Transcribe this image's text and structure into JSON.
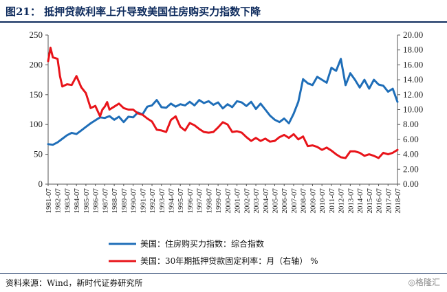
{
  "title": "图21：  抵押贷款利率上升导致美国住房购买力指数下降",
  "source": "资料来源：Wind，新时代证券研究所",
  "watermark": "◎格隆汇",
  "chart_data": {
    "type": "line",
    "title": "图21：  抵押贷款利率上升导致美国住房购买力指数下降",
    "left_axis": {
      "min": 0,
      "max": 250,
      "ticks": [
        0,
        50,
        100,
        150,
        200,
        250
      ],
      "labels": [
        "0",
        "50",
        "100",
        "150",
        "200",
        "250"
      ]
    },
    "right_axis": {
      "min": 0,
      "max": 20,
      "ticks": [
        0,
        2,
        4,
        6,
        8,
        10,
        12,
        14,
        16,
        18,
        20
      ],
      "labels": [
        "0.00",
        "2.00",
        "4.00",
        "6.00",
        "8.00",
        "10.00",
        "12.00",
        "14.00",
        "16.00",
        "18.00",
        "20.00"
      ]
    },
    "x_tick_labels": [
      "1981-07",
      "1982-07",
      "1983-07",
      "1984-07",
      "1985-07",
      "1986-07",
      "1987-07",
      "1988-07",
      "1989-07",
      "1990-07",
      "1991-07",
      "1992-07",
      "1993-07",
      "1994-07",
      "1995-07",
      "1996-07",
      "1997-07",
      "1998-07",
      "1999-07",
      "2000-07",
      "2001-07",
      "2002-07",
      "2003-07",
      "2004-07",
      "2005-07",
      "2006-07",
      "2007-07",
      "2008-07",
      "2009-07",
      "2010-07",
      "2011-07",
      "2012-07",
      "2013-07",
      "2014-07",
      "2015-07",
      "2016-07",
      "2017-07",
      "2018-07"
    ],
    "grid": false,
    "legend_position": "bottom-center",
    "series": [
      {
        "name": "美国：住房购买力指数：综合指数",
        "axis": "left",
        "color": "#1f6eb8",
        "x": [
          1981.5,
          1982.0,
          1982.5,
          1983.0,
          1983.5,
          1984.0,
          1984.5,
          1985.0,
          1985.5,
          1986.0,
          1986.5,
          1987.0,
          1987.5,
          1988.0,
          1988.5,
          1989.0,
          1989.5,
          1990.0,
          1990.5,
          1991.0,
          1991.5,
          1992.0,
          1992.5,
          1993.0,
          1993.5,
          1994.0,
          1994.5,
          1995.0,
          1995.5,
          1996.0,
          1996.5,
          1997.0,
          1997.5,
          1998.0,
          1998.5,
          1999.0,
          1999.5,
          2000.0,
          2000.5,
          2001.0,
          2001.5,
          2002.0,
          2002.5,
          2003.0,
          2003.5,
          2004.0,
          2004.5,
          2005.0,
          2005.5,
          2006.0,
          2006.5,
          2007.0,
          2007.5,
          2008.0,
          2008.5,
          2009.0,
          2009.5,
          2010.0,
          2010.5,
          2011.0,
          2011.5,
          2012.0,
          2012.5,
          2013.0,
          2013.5,
          2014.0,
          2014.5,
          2015.0,
          2015.5,
          2016.0,
          2016.5,
          2017.0,
          2017.5,
          2018.0,
          2018.5
        ],
        "values": [
          67,
          66,
          70,
          76,
          82,
          86,
          84,
          90,
          96,
          102,
          107,
          112,
          111,
          114,
          108,
          113,
          104,
          113,
          112,
          120,
          117,
          130,
          132,
          141,
          129,
          128,
          135,
          130,
          134,
          132,
          138,
          132,
          141,
          136,
          139,
          133,
          137,
          127,
          134,
          129,
          139,
          137,
          131,
          138,
          126,
          135,
          125,
          115,
          108,
          104,
          110,
          102,
          118,
          138,
          176,
          169,
          166,
          180,
          175,
          170,
          195,
          190,
          210,
          166,
          186,
          175,
          162,
          175,
          160,
          175,
          167,
          165,
          155,
          160,
          138
        ]
      },
      {
        "name": "美国：30年期抵押贷款固定利率：月（右轴）  %",
        "axis": "right",
        "color": "#e8141a",
        "x": [
          1981.5,
          1981.75,
          1982.0,
          1982.25,
          1982.5,
          1982.75,
          1983.0,
          1983.5,
          1984.0,
          1984.5,
          1985.0,
          1985.5,
          1986.0,
          1986.5,
          1987.0,
          1987.25,
          1987.5,
          1987.75,
          1988.0,
          1988.5,
          1989.0,
          1989.5,
          1990.0,
          1990.5,
          1991.0,
          1991.5,
          1992.0,
          1992.5,
          1993.0,
          1993.5,
          1994.0,
          1994.5,
          1995.0,
          1995.5,
          1996.0,
          1996.5,
          1997.0,
          1997.5,
          1998.0,
          1998.5,
          1999.0,
          1999.5,
          2000.0,
          2000.5,
          2001.0,
          2001.5,
          2002.0,
          2002.5,
          2003.0,
          2003.5,
          2004.0,
          2004.5,
          2005.0,
          2005.5,
          2006.0,
          2006.5,
          2007.0,
          2007.5,
          2008.0,
          2008.5,
          2009.0,
          2009.5,
          2010.0,
          2010.5,
          2011.0,
          2011.5,
          2012.0,
          2012.5,
          2013.0,
          2013.5,
          2014.0,
          2014.5,
          2015.0,
          2015.5,
          2016.0,
          2016.5,
          2017.0,
          2017.5,
          2018.0,
          2018.5
        ],
        "values": [
          16.5,
          18.3,
          17.0,
          16.9,
          16.8,
          14.5,
          13.1,
          13.4,
          13.3,
          14.5,
          13.0,
          12.2,
          10.2,
          10.5,
          9.1,
          10.0,
          10.4,
          11.0,
          10.0,
          10.4,
          10.8,
          10.2,
          10.0,
          10.0,
          9.5,
          9.3,
          8.8,
          8.4,
          7.3,
          7.2,
          7.0,
          8.6,
          9.1,
          7.7,
          7.2,
          8.2,
          7.9,
          7.4,
          7.0,
          6.9,
          7.0,
          7.6,
          8.3,
          8.0,
          7.0,
          7.1,
          6.9,
          6.3,
          5.8,
          6.2,
          5.8,
          6.1,
          5.7,
          5.8,
          6.3,
          6.6,
          6.2,
          6.7,
          6.0,
          6.4,
          5.1,
          5.2,
          5.0,
          4.6,
          4.9,
          4.5,
          4.0,
          3.6,
          3.5,
          4.4,
          4.4,
          4.2,
          3.8,
          4.0,
          3.8,
          3.5,
          4.2,
          4.0,
          4.2,
          4.6
        ]
      }
    ]
  }
}
